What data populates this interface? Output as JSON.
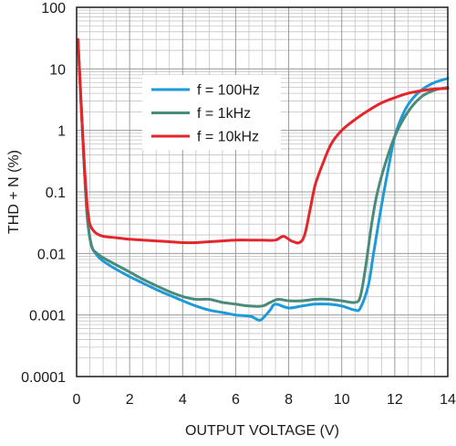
{
  "chart_data": {
    "type": "line",
    "title": "",
    "xlabel": "OUTPUT VOLTAGE (V)",
    "ylabel": "THD + N (%)",
    "xlim": [
      0,
      14
    ],
    "ylim": [
      0.0001,
      100
    ],
    "yscale": "log",
    "grid": true,
    "legend_position": "top-center",
    "x_ticks": [
      "0",
      "2",
      "4",
      "6",
      "8",
      "10",
      "12",
      "14"
    ],
    "y_ticks": [
      "0.0001",
      "0.001",
      "0.01",
      "0.1",
      "1",
      "10",
      "100"
    ],
    "series": [
      {
        "name": "f = 100Hz",
        "color": "#1e9ad8",
        "x": [
          0.05,
          0.2,
          0.3,
          0.4,
          0.5,
          0.6,
          0.8,
          1.0,
          1.5,
          2.0,
          2.5,
          3.0,
          3.5,
          4.0,
          4.5,
          5.0,
          5.5,
          6.0,
          6.3,
          6.6,
          6.9,
          7.1,
          7.3,
          7.5,
          8.0,
          8.5,
          9.0,
          9.5,
          10.0,
          10.5,
          10.7,
          11.0,
          11.2,
          11.5,
          11.8,
          12.0,
          12.3,
          12.6,
          13.0,
          13.5,
          14.0
        ],
        "values": [
          30,
          1.5,
          0.2,
          0.04,
          0.018,
          0.012,
          0.009,
          0.0075,
          0.0055,
          0.0042,
          0.0033,
          0.0026,
          0.0021,
          0.0017,
          0.0014,
          0.0012,
          0.0011,
          0.001,
          0.00098,
          0.00094,
          0.00082,
          0.00096,
          0.0012,
          0.0015,
          0.0013,
          0.0014,
          0.0015,
          0.0015,
          0.0014,
          0.0012,
          0.0013,
          0.003,
          0.01,
          0.06,
          0.3,
          0.8,
          1.8,
          3.0,
          4.5,
          6.0,
          7.0
        ]
      },
      {
        "name": "f = 1kHz",
        "color": "#4a8a7a",
        "x": [
          0.05,
          0.2,
          0.3,
          0.4,
          0.5,
          0.6,
          0.8,
          1.0,
          1.5,
          2.0,
          2.5,
          3.0,
          3.5,
          4.0,
          4.5,
          5.0,
          5.5,
          6.0,
          6.5,
          7.0,
          7.3,
          7.6,
          8.0,
          8.5,
          9.0,
          9.5,
          10.0,
          10.5,
          10.7,
          10.9,
          11.1,
          11.3,
          11.6,
          12.0,
          12.5,
          13.0,
          13.5,
          14.0
        ],
        "values": [
          30,
          1.5,
          0.2,
          0.04,
          0.018,
          0.012,
          0.0098,
          0.0085,
          0.0065,
          0.005,
          0.0038,
          0.003,
          0.0024,
          0.002,
          0.0018,
          0.0018,
          0.0016,
          0.0015,
          0.0014,
          0.0014,
          0.0016,
          0.0018,
          0.0017,
          0.0017,
          0.0018,
          0.0018,
          0.0017,
          0.0016,
          0.002,
          0.006,
          0.025,
          0.08,
          0.25,
          0.8,
          2.0,
          3.5,
          4.5,
          5.0
        ]
      },
      {
        "name": "f = 10kHz",
        "color": "#e4262b",
        "x": [
          0.05,
          0.2,
          0.3,
          0.4,
          0.5,
          0.7,
          1.0,
          1.5,
          2.0,
          2.5,
          3.0,
          3.5,
          4.0,
          4.5,
          5.0,
          5.5,
          6.0,
          6.5,
          7.0,
          7.5,
          7.8,
          8.1,
          8.4,
          8.6,
          8.8,
          9.0,
          9.3,
          9.6,
          10.0,
          10.5,
          11.0,
          11.5,
          12.0,
          12.5,
          13.0,
          13.5,
          14.0
        ],
        "values": [
          30,
          1.5,
          0.25,
          0.06,
          0.03,
          0.022,
          0.019,
          0.018,
          0.017,
          0.0165,
          0.016,
          0.0155,
          0.015,
          0.015,
          0.0155,
          0.016,
          0.0165,
          0.0165,
          0.0165,
          0.0165,
          0.019,
          0.016,
          0.015,
          0.02,
          0.05,
          0.13,
          0.3,
          0.6,
          1.0,
          1.5,
          2.1,
          2.8,
          3.4,
          4.0,
          4.4,
          4.7,
          4.8
        ]
      }
    ]
  }
}
